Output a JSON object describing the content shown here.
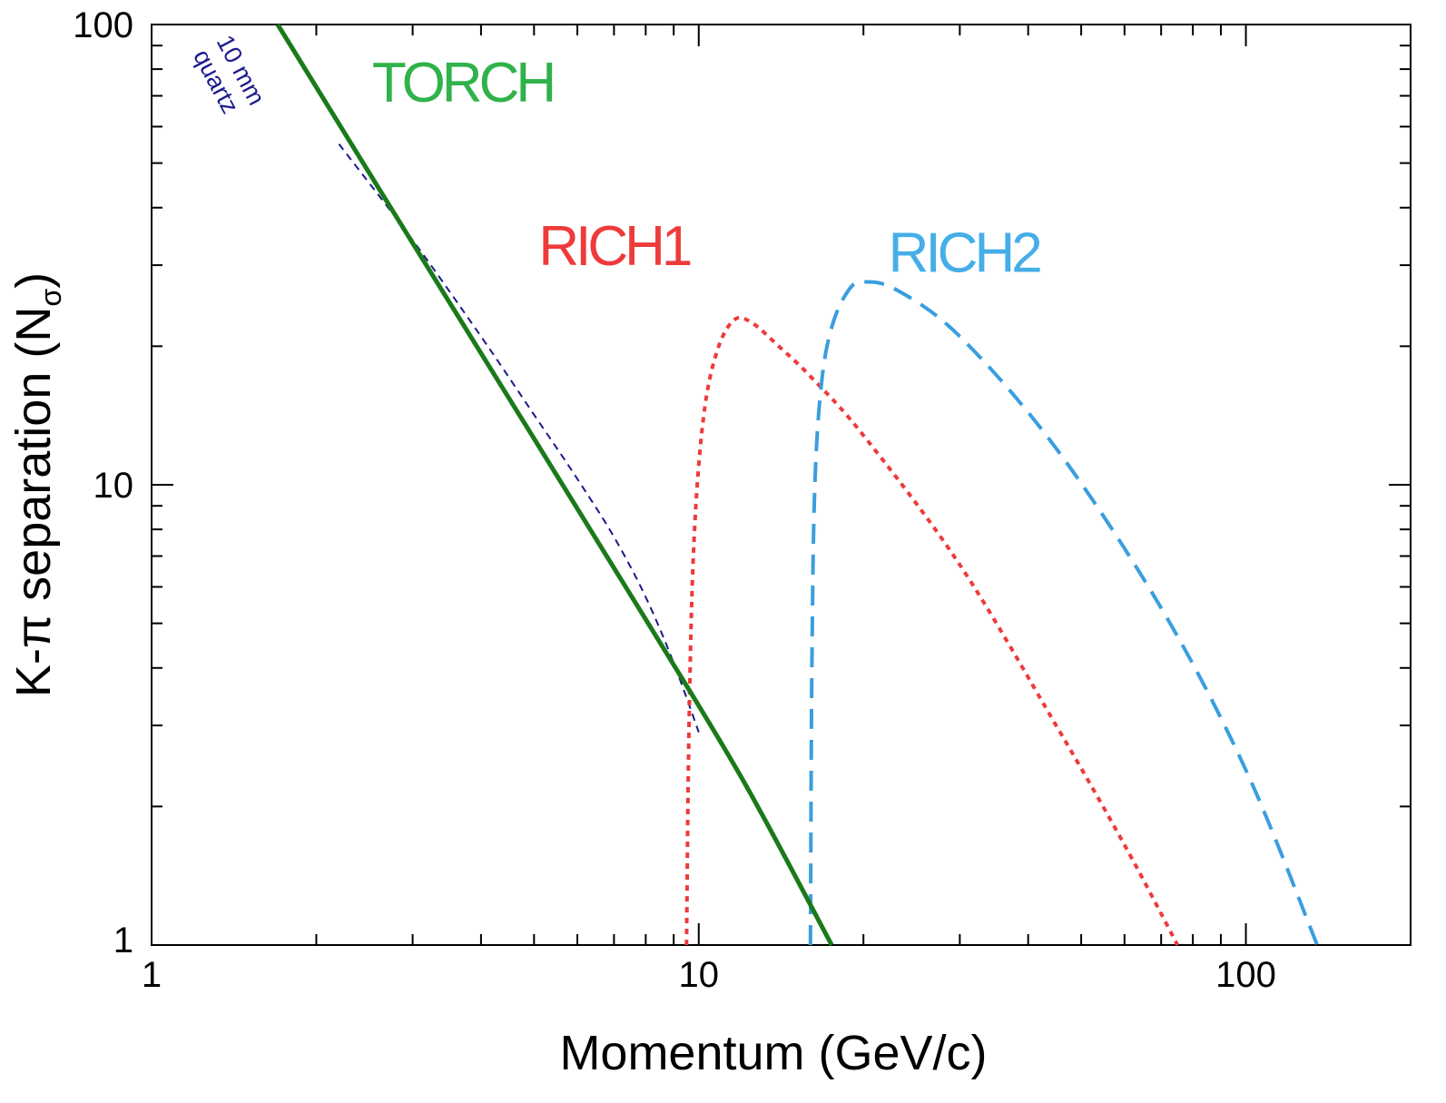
{
  "chart_data": {
    "type": "line",
    "x_scale": "log",
    "y_scale": "log",
    "xlim": [
      1,
      200
    ],
    "ylim": [
      1,
      100
    ],
    "xlabel": "Momentum (GeV/c)",
    "ylabel": "K-π separation (N",
    "ylabel_sub": "σ",
    "ylabel_close": ")",
    "x_ticks": [
      1,
      10,
      100
    ],
    "x_tick_labels": [
      "1",
      "10",
      "100"
    ],
    "y_ticks": [
      1,
      10,
      100
    ],
    "y_tick_labels": [
      "1",
      "10",
      "100"
    ],
    "grid": false,
    "series": [
      {
        "name": "TORCH",
        "color": "#1a7a1a",
        "label_color": "#2fb24a",
        "style": "solid",
        "x": [
          1.7,
          3.0,
          5.0,
          8.0,
          12.0,
          17.5
        ],
        "y": [
          100,
          33.5,
          12.6,
          5.1,
          2.3,
          1.0
        ]
      },
      {
        "name": "RICH1",
        "color": "#ee3a3a",
        "label_color": "#ee3a3a",
        "style": "dotted",
        "x": [
          9.5,
          9.6,
          9.8,
          10.2,
          10.8,
          11.6,
          12.5,
          14.0,
          16.0,
          20.0,
          30.0,
          45.0,
          60.0,
          75.0
        ],
        "y": [
          1.0,
          3.0,
          7.5,
          14.0,
          19.5,
          22.8,
          22.5,
          20.0,
          17.2,
          12.8,
          6.7,
          3.0,
          1.65,
          1.0
        ]
      },
      {
        "name": "RICH2",
        "color": "#3a9ede",
        "label_color": "#45aee8",
        "style": "dashed",
        "x": [
          16.0,
          16.1,
          16.3,
          16.8,
          17.6,
          18.8,
          20.0,
          23.0,
          30.0,
          45.0,
          70.0,
          100.0,
          135.0
        ],
        "y": [
          1.0,
          4.0,
          10.0,
          17.0,
          22.5,
          26.5,
          27.6,
          26.5,
          21.0,
          12.0,
          5.4,
          2.4,
          1.0
        ]
      },
      {
        "name": "10 mm quartz",
        "color": "#1a1a8c",
        "style": "dashed-thin",
        "x": [
          2.2,
          3.0,
          4.0,
          5.0,
          6.0,
          7.0,
          8.0,
          9.0,
          10.0
        ],
        "y": [
          55,
          34,
          21,
          14.2,
          10.3,
          7.7,
          5.7,
          4.1,
          2.9
        ]
      }
    ],
    "annotations": [
      {
        "lines": [
          "10 mm",
          "quartz"
        ],
        "series": "10 mm quartz"
      }
    ]
  }
}
